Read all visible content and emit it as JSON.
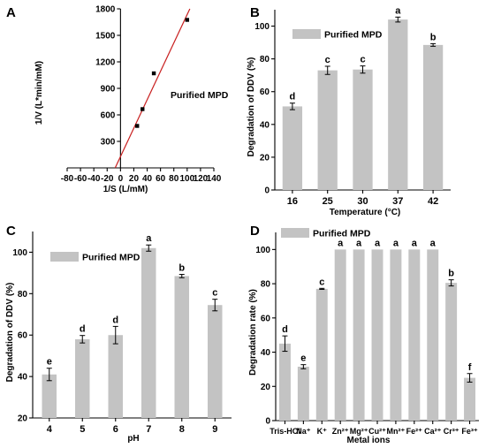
{
  "colors": {
    "bar": "#c3c3c3",
    "line": "#c81e1e",
    "marker": "#000000",
    "errorbar": "#000000",
    "axis": "#000000"
  },
  "chart_data": [
    {
      "panel": "A",
      "type": "scatter",
      "xlabel": "1/S (L/mM)",
      "ylabel": "1/V (L*min/mM)",
      "legend": [
        "Purified MPD"
      ],
      "legend_position": "center-right",
      "xlim": [
        -80,
        140
      ],
      "ylim": [
        0,
        1800
      ],
      "xticks": [
        "-80",
        "-60",
        "-40",
        "-20",
        "0",
        "20",
        "40",
        "60",
        "80",
        "100",
        "120",
        "140"
      ],
      "yticks": [
        "300",
        "600",
        "900",
        "1200",
        "1500",
        "1800"
      ],
      "points": [
        {
          "x": 25,
          "y": 475
        },
        {
          "x": 33,
          "y": 665
        },
        {
          "x": 50,
          "y": 1070
        },
        {
          "x": 100,
          "y": 1675
        }
      ],
      "fit_line": [
        {
          "x": -8,
          "y": 0
        },
        {
          "x": 104,
          "y": 1800
        }
      ]
    },
    {
      "panel": "B",
      "type": "bar",
      "xlabel": "Temperature (°C)",
      "ylabel": "Degradation of DDV (%)",
      "legend": [
        "Purified MPD"
      ],
      "legend_position": "top-left",
      "ylim": [
        0,
        110
      ],
      "yticks": [
        "0",
        "20",
        "40",
        "60",
        "80",
        "100"
      ],
      "categories": [
        "16",
        "25",
        "30",
        "37",
        "42"
      ],
      "values": [
        51,
        73,
        73.5,
        104,
        88.5
      ],
      "errors": [
        2,
        2.5,
        2.2,
        1.5,
        0.8
      ],
      "significance": [
        "d",
        "c",
        "c",
        "a",
        "b"
      ]
    },
    {
      "panel": "C",
      "type": "bar",
      "xlabel": "pH",
      "ylabel": "Degradation of DDV (%)",
      "legend": [
        "Purified MPD"
      ],
      "legend_position": "top-left",
      "ylim": [
        20,
        110
      ],
      "yticks": [
        "20",
        "40",
        "60",
        "80",
        "100"
      ],
      "categories": [
        "4",
        "5",
        "6",
        "7",
        "8",
        "9"
      ],
      "values": [
        41,
        58,
        60,
        102,
        88.5,
        74.5
      ],
      "errors": [
        3,
        1.8,
        4.2,
        1.5,
        0.8,
        2.8
      ],
      "significance": [
        "e",
        "d",
        "d",
        "a",
        "b",
        "c"
      ]
    },
    {
      "panel": "D",
      "type": "bar",
      "xlabel": "Metal ions",
      "ylabel": "Degradation rate (%)",
      "legend": [
        "Purified MPD"
      ],
      "legend_position": "top-left",
      "ylim": [
        0,
        110
      ],
      "yticks": [
        "0",
        "20",
        "40",
        "60",
        "80",
        "100"
      ],
      "categories": [
        "Tris-HCl",
        "Na⁺",
        "K⁺",
        "Zn²⁺",
        "Mg²⁺",
        "Cu²⁺",
        "Mn²⁺",
        "Fe²⁺",
        "Ca²⁺",
        "Cr³⁺",
        "Fe³⁺"
      ],
      "values": [
        45,
        31.5,
        77,
        100,
        100,
        100,
        100,
        100,
        100,
        80.5,
        25
      ],
      "errors": [
        4.5,
        1.2,
        0.3,
        0,
        0,
        0,
        0,
        0,
        0,
        1.8,
        2.5
      ],
      "significance": [
        "d",
        "e",
        "c",
        "a",
        "a",
        "a",
        "a",
        "a",
        "a",
        "b",
        "f"
      ]
    }
  ]
}
